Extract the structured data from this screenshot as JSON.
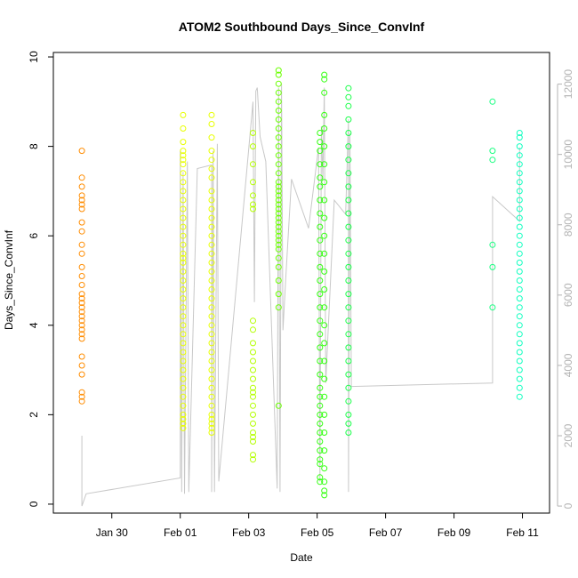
{
  "chart_data": {
    "type": "scatter",
    "title": "ATOM2 Southbound Days_Since_ConvInf",
    "xlabel": "Date",
    "ylabel": "Days_Since_ConvInf",
    "x_axis_type": "date",
    "xlim": [
      "2025-01-28T07:00",
      "2025-02-11T19:00"
    ],
    "ylim": [
      -0.2,
      10.1
    ],
    "y_ticks": [
      0,
      2,
      4,
      6,
      8,
      10
    ],
    "x_ticks": [
      {
        "date": "2025-01-30",
        "label": "Jan 30"
      },
      {
        "date": "2025-02-01",
        "label": "Feb 01"
      },
      {
        "date": "2025-02-03",
        "label": "Feb 03"
      },
      {
        "date": "2025-02-05",
        "label": "Feb 05"
      },
      {
        "date": "2025-02-07",
        "label": "Feb 07"
      },
      {
        "date": "2025-02-09",
        "label": "Feb 09"
      },
      {
        "date": "2025-02-11",
        "label": "Feb 11"
      }
    ],
    "right_axis": {
      "ylim": [
        -200,
        12900
      ],
      "ticks": [
        0,
        2000,
        4000,
        6000,
        8000,
        10000,
        12000
      ],
      "color": "#b3b3b3"
    },
    "grid": false,
    "legend": "none",
    "series": [
      {
        "color": "#ff8c00",
        "x": "2025-01-29T03:00",
        "y": [
          7.9,
          7.3,
          7.1,
          6.9,
          6.8,
          6.7,
          6.6,
          6.3,
          6.1,
          5.8,
          5.6,
          5.3,
          5.1,
          4.9,
          4.7,
          4.6,
          4.5,
          4.4,
          4.3,
          4.2,
          4.1,
          4.0,
          3.9,
          3.8,
          3.7,
          3.3,
          3.1,
          2.9,
          2.5,
          2.4,
          2.3
        ]
      },
      {
        "color": "#e8ff00",
        "x": "2025-02-01T02:00",
        "y": [
          8.7,
          8.4,
          8.1,
          7.9,
          7.8,
          7.7,
          7.6,
          7.4,
          7.2,
          7.0,
          6.8,
          6.6,
          6.4,
          6.2,
          6.0,
          5.8,
          5.6,
          5.5,
          5.4,
          5.2,
          5.0,
          4.8,
          4.6,
          4.4,
          4.2,
          4.0,
          3.8,
          3.6,
          3.4,
          3.2,
          3.0,
          2.8,
          2.6,
          2.4,
          2.2,
          2.0,
          1.9,
          1.8,
          1.7
        ]
      },
      {
        "color": "#e8ff00",
        "x": "2025-02-01T22:00",
        "y": [
          8.7,
          8.5,
          8.2,
          7.9,
          7.7,
          7.5,
          7.3,
          7.0,
          6.8,
          6.6,
          6.4,
          6.2,
          6.0,
          5.8,
          5.6,
          5.4,
          5.2,
          5.0,
          4.8,
          4.6,
          4.4,
          4.2,
          4.0,
          3.8,
          3.6,
          3.4,
          3.2,
          3.0,
          2.8,
          2.6,
          2.4,
          2.2,
          2.0,
          1.9,
          1.8,
          1.7,
          1.6
        ]
      },
      {
        "color": "#b4ff00",
        "x": "2025-02-03T03:00",
        "y": [
          8.3,
          8.0,
          7.6,
          7.2,
          6.9,
          6.7,
          6.6,
          4.1,
          3.9,
          3.6,
          3.4,
          3.2,
          3.0,
          2.8,
          2.6,
          2.5,
          2.4,
          2.2,
          2.0,
          1.8,
          1.6,
          1.5,
          1.4,
          1.1,
          1.0
        ]
      },
      {
        "color": "#6aff00",
        "x": "2025-02-03T21:00",
        "y": [
          9.7,
          9.6,
          9.4,
          9.2,
          9.0,
          8.8,
          8.6,
          8.4,
          8.2,
          8.0,
          7.8,
          7.6,
          7.4,
          7.2,
          7.1,
          7.0,
          6.9,
          6.8,
          6.7,
          6.6,
          6.5,
          6.4,
          6.3,
          6.2,
          6.1,
          6.0,
          5.9,
          5.8,
          5.7,
          5.5,
          5.3,
          5.0,
          4.7,
          4.4,
          2.2
        ]
      },
      {
        "color": "#33ff10",
        "x": "2025-02-05T02:00",
        "y": [
          8.3,
          8.1,
          7.9,
          7.6,
          7.3,
          7.1,
          6.8,
          6.5,
          6.2,
          5.9,
          5.6,
          5.3,
          5.0,
          4.7,
          4.4,
          4.1,
          3.8,
          3.5,
          3.2,
          2.9,
          2.6,
          2.4,
          2.2,
          2.0,
          1.8,
          1.6,
          1.4,
          1.2,
          1.0,
          0.9,
          0.6,
          0.5
        ]
      },
      {
        "color": "#33ff10",
        "x": "2025-02-05T05:00",
        "y": [
          9.6,
          9.5,
          9.2,
          8.7,
          8.4,
          8.0,
          7.6,
          7.2,
          6.8,
          6.4,
          6.0,
          5.6,
          5.2,
          4.8,
          4.4,
          4.0,
          3.6,
          3.2,
          2.8,
          2.4,
          2.0,
          1.6,
          1.2,
          0.8,
          0.5,
          0.3,
          0.2
        ]
      },
      {
        "color": "#18ff48",
        "x": "2025-02-05T22:00",
        "y": [
          9.3,
          9.1,
          8.9,
          8.6,
          8.3,
          8.0,
          7.7,
          7.4,
          7.1,
          6.8,
          6.5,
          6.2,
          5.9,
          5.6,
          5.3,
          5.0,
          4.7,
          4.4,
          4.1,
          3.8,
          3.5,
          3.2,
          2.9,
          2.6,
          2.3,
          2.0,
          1.8,
          1.6
        ]
      },
      {
        "color": "#18ff80",
        "x": "2025-02-10T03:00",
        "y": [
          9.0,
          7.9,
          7.7,
          5.8,
          5.3,
          4.4
        ]
      },
      {
        "color": "#10ffc0",
        "x": "2025-02-10T22:00",
        "y": [
          8.3,
          8.2,
          8.0,
          7.8,
          7.6,
          7.4,
          7.2,
          7.0,
          6.8,
          6.6,
          6.4,
          6.2,
          6.0,
          5.8,
          5.6,
          5.4,
          5.2,
          5.0,
          4.8,
          4.6,
          4.4,
          4.2,
          4.0,
          3.8,
          3.6,
          3.4,
          3.2,
          3.0,
          2.8,
          2.6,
          2.4
        ]
      }
    ],
    "overlay_line": {
      "color": "#c8c8c8",
      "axis": "right",
      "points": [
        [
          "2025-01-29T03:00",
          2000
        ],
        [
          "2025-01-29T03:00",
          0
        ],
        [
          "2025-01-29T06:00",
          350
        ],
        [
          "2025-02-01T00:00",
          800
        ],
        [
          "2025-02-01T00:00",
          10100
        ],
        [
          "2025-02-01T01:00",
          400
        ],
        [
          "2025-02-01T02:00",
          9500
        ],
        [
          "2025-02-01T03:00",
          350
        ],
        [
          "2025-02-01T05:00",
          9800
        ],
        [
          "2025-02-01T06:00",
          400
        ],
        [
          "2025-02-01T12:00",
          9600
        ],
        [
          "2025-02-01T22:00",
          9700
        ],
        [
          "2025-02-01T22:00",
          400
        ],
        [
          "2025-02-01T23:00",
          10100
        ],
        [
          "2025-02-02T00:00",
          400
        ],
        [
          "2025-02-02T02:00",
          10300
        ],
        [
          "2025-02-02T03:00",
          700
        ],
        [
          "2025-02-03T03:00",
          11500
        ],
        [
          "2025-02-03T04:00",
          5800
        ],
        [
          "2025-02-03T05:00",
          11800
        ],
        [
          "2025-02-03T06:00",
          11900
        ],
        [
          "2025-02-03T08:00",
          10500
        ],
        [
          "2025-02-03T12:00",
          9800
        ],
        [
          "2025-02-03T20:00",
          500
        ],
        [
          "2025-02-03T21:00",
          11900
        ],
        [
          "2025-02-03T22:00",
          400
        ],
        [
          "2025-02-03T23:00",
          12000
        ],
        [
          "2025-02-04T00:00",
          5000
        ],
        [
          "2025-02-04T02:00",
          6500
        ],
        [
          "2025-02-04T06:00",
          9300
        ],
        [
          "2025-02-04T18:00",
          7900
        ],
        [
          "2025-02-05T01:00",
          10200
        ],
        [
          "2025-02-05T02:00",
          700
        ],
        [
          "2025-02-05T03:00",
          10800
        ],
        [
          "2025-02-05T04:00",
          9300
        ],
        [
          "2025-02-05T05:00",
          11900
        ],
        [
          "2025-02-05T06:00",
          3500
        ],
        [
          "2025-02-05T12:00",
          8700
        ],
        [
          "2025-02-05T20:00",
          8300
        ],
        [
          "2025-02-05T22:00",
          11000
        ],
        [
          "2025-02-05T22:00",
          400
        ],
        [
          "2025-02-05T23:00",
          10600
        ],
        [
          "2025-02-06T00:00",
          3400
        ],
        [
          "2025-02-10T03:00",
          3500
        ],
        [
          "2025-02-10T03:00",
          8800
        ],
        [
          "2025-02-10T22:00",
          8100
        ],
        [
          "2025-02-10T22:00",
          10200
        ]
      ]
    }
  }
}
